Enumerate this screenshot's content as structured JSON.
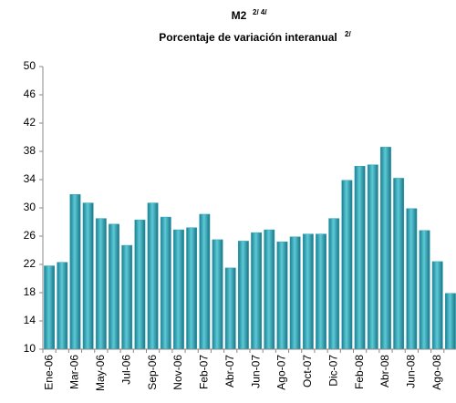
{
  "chart_data": {
    "type": "bar",
    "title": "M2",
    "title_note": "2/ 4/",
    "subtitle": "Porcentaje de variación interanual",
    "subtitle_note": "2/",
    "categories": [
      "Ene-06",
      null,
      "Mar-06",
      null,
      "May-06",
      null,
      "Jul-06",
      null,
      "Sep-06",
      null,
      "Nov-06",
      null,
      "Feb-07",
      null,
      "Abr-07",
      null,
      "Jun-07",
      null,
      "Ago-07",
      null,
      "Oct-07",
      null,
      "Dic-07",
      null,
      "Feb-08",
      null,
      "Abr-08",
      null,
      "Jun-08",
      null,
      "Ago-08",
      null
    ],
    "values": [
      21.8,
      22.3,
      31.9,
      30.7,
      28.5,
      27.7,
      24.7,
      28.3,
      30.7,
      28.7,
      26.9,
      27.2,
      29.1,
      25.5,
      21.5,
      25.3,
      26.5,
      26.9,
      25.2,
      25.9,
      26.3,
      26.3,
      28.5,
      33.9,
      35.9,
      36.1,
      38.6,
      34.2,
      29.9,
      26.8,
      22.4,
      17.9
    ],
    "color": "#2fa3b5",
    "ylim": [
      10,
      50
    ],
    "yticks": [
      10,
      14,
      18,
      22,
      26,
      30,
      34,
      38,
      42,
      46,
      50
    ],
    "grid": false
  }
}
